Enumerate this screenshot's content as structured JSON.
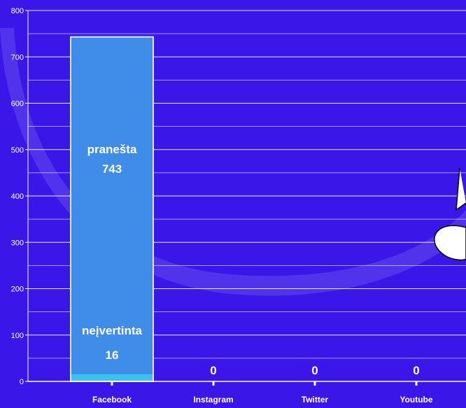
{
  "chart_data": {
    "type": "bar",
    "stacked": true,
    "categories": [
      "Facebook",
      "Instagram",
      "Twitter",
      "Youtube"
    ],
    "series": [
      {
        "values": [
          16,
          0,
          0,
          0
        ],
        "color": "#3ac2f2"
      },
      {
        "values": [
          727,
          0,
          0,
          0
        ],
        "color": "#3f8de8"
      }
    ],
    "data_labels": {
      "Facebook": [
        {
          "name": "neįvertinta",
          "value": "16"
        },
        {
          "name": "pranešta",
          "value": "743"
        }
      ],
      "Instagram": [
        {
          "name": "",
          "value": "0"
        }
      ],
      "Twitter": [
        {
          "name": "",
          "value": "0"
        }
      ],
      "Youtube": [
        {
          "name": "",
          "value": "0"
        }
      ]
    },
    "ylim": [
      0,
      800
    ],
    "yticks": [
      0,
      100,
      200,
      300,
      400,
      500,
      600,
      700,
      800
    ],
    "grid": true,
    "background_color": "#3a16e8",
    "gridline_color": "#ffffff",
    "bar_outline_color": "#d9e7ff"
  }
}
